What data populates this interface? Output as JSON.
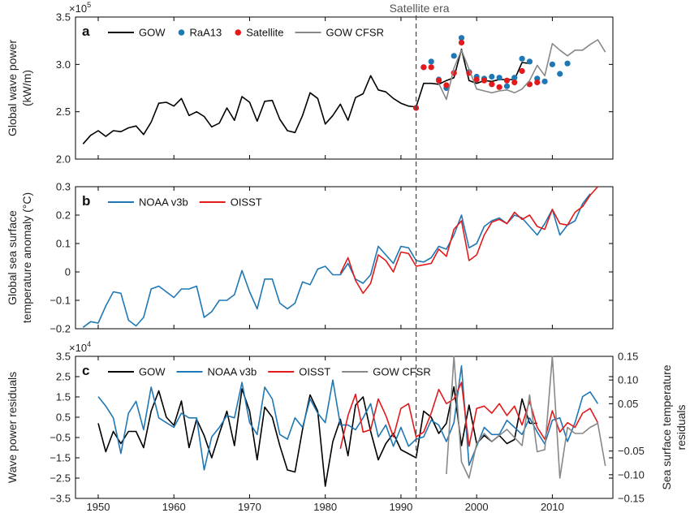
{
  "colors": {
    "gow": "#000000",
    "raa13": "#1f78b4",
    "satellite": "#e31a1c",
    "cfsr": "#888888",
    "noaa": "#1f78b4",
    "oisst": "#e31a1c",
    "frame": "#000000",
    "era_line": "#444444"
  },
  "satellite_era_label": "Satellite era",
  "satellite_era_year": 1992,
  "xaxis": {
    "xlim": [
      1947,
      2018
    ],
    "ticks": [
      "1950",
      "1960",
      "1970",
      "1980",
      "1990",
      "2000",
      "2010"
    ]
  },
  "chart_data": [
    {
      "id": "a",
      "panel_label": "a",
      "type": "line",
      "ylabel": [
        "Global wave power",
        "(kW/m)"
      ],
      "ylim": [
        2.0,
        3.5
      ],
      "yticks": [
        "2.0",
        "2.5",
        "3.0",
        "3.5"
      ],
      "y_exponent": "×10",
      "y_exponent_power": "5",
      "legend": [
        "GOW",
        "RaA13",
        "Satellite",
        "GOW CFSR"
      ],
      "series": [
        {
          "name": "GOW",
          "color": "gow",
          "style": "line",
          "x": [
            1948,
            1949,
            1950,
            1951,
            1952,
            1953,
            1954,
            1955,
            1956,
            1957,
            1958,
            1959,
            1960,
            1961,
            1962,
            1963,
            1964,
            1965,
            1966,
            1967,
            1968,
            1969,
            1970,
            1971,
            1972,
            1973,
            1974,
            1975,
            1976,
            1977,
            1978,
            1979,
            1980,
            1981,
            1982,
            1983,
            1984,
            1985,
            1986,
            1987,
            1988,
            1989,
            1990,
            1991,
            1992,
            1993,
            1994,
            1995,
            1996,
            1997,
            1998,
            1999,
            2000,
            2001,
            2002,
            2003,
            2004,
            2005,
            2006,
            2007
          ],
          "values": [
            2.16,
            2.25,
            2.3,
            2.24,
            2.3,
            2.29,
            2.33,
            2.35,
            2.26,
            2.39,
            2.59,
            2.6,
            2.56,
            2.64,
            2.46,
            2.5,
            2.45,
            2.34,
            2.38,
            2.54,
            2.41,
            2.66,
            2.6,
            2.4,
            2.61,
            2.62,
            2.42,
            2.3,
            2.28,
            2.46,
            2.7,
            2.64,
            2.37,
            2.46,
            2.58,
            2.41,
            2.65,
            2.69,
            2.88,
            2.73,
            2.71,
            2.64,
            2.59,
            2.56,
            2.55,
            2.8,
            2.8,
            2.79,
            2.83,
            2.86,
            3.16,
            2.83,
            2.8,
            2.83,
            2.82,
            2.84,
            2.84,
            2.84,
            3.02,
            3.01
          ]
        },
        {
          "name": "RaA13",
          "color": "raa13",
          "style": "dots",
          "x": [
            1993,
            1994,
            1995,
            1996,
            1997,
            1998,
            1999,
            2000,
            2001,
            2002,
            2003,
            2004,
            2005,
            2006,
            2007,
            2008,
            2009,
            2010,
            2011,
            2012
          ],
          "values": [
            2.97,
            3.03,
            2.84,
            2.75,
            3.09,
            3.28,
            2.92,
            2.87,
            2.85,
            2.87,
            2.86,
            2.77,
            2.86,
            3.06,
            3.03,
            2.85,
            2.82,
            3.0,
            2.9,
            3.01
          ]
        },
        {
          "name": "Satellite",
          "color": "satellite",
          "style": "dots",
          "x": [
            1992,
            1993,
            1994,
            1995,
            1996,
            1997,
            1998,
            1999,
            2000,
            2001,
            2002,
            2003,
            2004,
            2005,
            2006,
            2007,
            2008
          ],
          "values": [
            2.54,
            2.97,
            2.97,
            2.83,
            2.78,
            2.91,
            3.23,
            2.91,
            2.84,
            2.83,
            2.79,
            2.76,
            2.83,
            2.81,
            2.93,
            2.79,
            2.81
          ]
        },
        {
          "name": "GOW CFSR",
          "color": "cfsr",
          "style": "line",
          "x": [
            1995,
            1996,
            1997,
            1998,
            1999,
            2000,
            2001,
            2002,
            2003,
            2004,
            2005,
            2006,
            2007,
            2008,
            2009,
            2010,
            2011,
            2012,
            2013,
            2014,
            2015,
            2016,
            2017
          ],
          "values": [
            2.8,
            2.63,
            2.96,
            3.15,
            2.95,
            2.74,
            2.72,
            2.7,
            2.72,
            2.73,
            2.7,
            2.74,
            2.83,
            2.99,
            2.88,
            3.22,
            3.15,
            3.09,
            3.15,
            3.15,
            3.21,
            3.26,
            3.13
          ]
        }
      ]
    },
    {
      "id": "b",
      "panel_label": "b",
      "type": "line",
      "ylabel": [
        "Global sea surface",
        "temperature anomaly (°C)"
      ],
      "ylim": [
        -0.2,
        0.3
      ],
      "yticks": [
        "−0.2",
        "−0.1",
        "0",
        "0.1",
        "0.2",
        "0.3"
      ],
      "legend": [
        "NOAA v3b",
        "OISST"
      ],
      "series": [
        {
          "name": "NOAA v3b",
          "color": "noaa",
          "style": "line",
          "x": [
            1948,
            1949,
            1950,
            1951,
            1952,
            1953,
            1954,
            1955,
            1956,
            1957,
            1958,
            1959,
            1960,
            1961,
            1962,
            1963,
            1964,
            1965,
            1966,
            1967,
            1968,
            1969,
            1970,
            1971,
            1972,
            1973,
            1974,
            1975,
            1976,
            1977,
            1978,
            1979,
            1980,
            1981,
            1982,
            1983,
            1984,
            1985,
            1986,
            1987,
            1988,
            1989,
            1990,
            1991,
            1992,
            1993,
            1994,
            1995,
            1996,
            1997,
            1998,
            1999,
            2000,
            2001,
            2002,
            2003,
            2004,
            2005,
            2006,
            2007,
            2008,
            2009,
            2010,
            2011,
            2012,
            2013,
            2014,
            2015
          ],
          "values": [
            -0.195,
            -0.175,
            -0.18,
            -0.12,
            -0.07,
            -0.075,
            -0.17,
            -0.19,
            -0.16,
            -0.06,
            -0.05,
            -0.07,
            -0.09,
            -0.06,
            -0.06,
            -0.05,
            -0.16,
            -0.14,
            -0.1,
            -0.1,
            -0.08,
            0.005,
            -0.07,
            -0.13,
            -0.025,
            -0.025,
            -0.11,
            -0.13,
            -0.11,
            -0.035,
            -0.045,
            0.01,
            0.02,
            -0.01,
            -0.01,
            0.03,
            -0.025,
            -0.04,
            -0.01,
            0.09,
            0.06,
            0.03,
            0.09,
            0.085,
            0.04,
            0.035,
            0.05,
            0.09,
            0.08,
            0.13,
            0.2,
            0.085,
            0.1,
            0.16,
            0.18,
            0.19,
            0.17,
            0.2,
            0.19,
            0.16,
            0.13,
            0.17,
            0.22,
            0.13,
            0.165,
            0.18,
            0.24,
            0.275
          ]
        },
        {
          "name": "OISST",
          "color": "oisst",
          "style": "line",
          "x": [
            1982,
            1983,
            1984,
            1985,
            1986,
            1987,
            1988,
            1989,
            1990,
            1991,
            1992,
            1993,
            1994,
            1995,
            1996,
            1997,
            1998,
            1999,
            2000,
            2001,
            2002,
            2003,
            2004,
            2005,
            2006,
            2007,
            2008,
            2009,
            2010,
            2011,
            2012,
            2013,
            2014,
            2015,
            2016
          ],
          "values": [
            -0.005,
            0.05,
            -0.03,
            -0.075,
            -0.04,
            0.06,
            0.04,
            0.0,
            0.07,
            0.065,
            0.02,
            0.025,
            0.03,
            0.08,
            0.055,
            0.15,
            0.18,
            0.04,
            0.06,
            0.13,
            0.175,
            0.185,
            0.17,
            0.21,
            0.185,
            0.2,
            0.16,
            0.15,
            0.22,
            0.17,
            0.165,
            0.21,
            0.23,
            0.27,
            0.3
          ]
        }
      ]
    },
    {
      "id": "c",
      "panel_label": "c",
      "type": "line",
      "ylabel": [
        "Wave power residuals"
      ],
      "ylabel_right": [
        "Sea surface temperature",
        "residuals"
      ],
      "ylim": [
        -3.5,
        3.5
      ],
      "ylim_right": [
        -0.15,
        0.15
      ],
      "yticks": [
        "−3.5",
        "−2.5",
        "−1.5",
        "−0.5",
        "0.5",
        "1.5",
        "2.5",
        "3.5"
      ],
      "yticks_right": [
        "−0.15",
        "−0.10",
        "−0.05",
        "0.05",
        "0.10",
        "0.15"
      ],
      "y_exponent": "×10",
      "y_exponent_power": "4",
      "legend": [
        "GOW",
        "NOAA v3b",
        "OISST",
        "GOW CFSR"
      ],
      "series": [
        {
          "name": "GOW",
          "color": "gow",
          "style": "line",
          "axis": "left",
          "x": [
            1950,
            1951,
            1952,
            1953,
            1954,
            1955,
            1956,
            1957,
            1958,
            1959,
            1960,
            1961,
            1962,
            1963,
            1964,
            1965,
            1966,
            1967,
            1968,
            1969,
            1970,
            1971,
            1972,
            1973,
            1974,
            1975,
            1976,
            1977,
            1978,
            1979,
            1980,
            1981,
            1982,
            1983,
            1984,
            1985,
            1986,
            1987,
            1988,
            1989,
            1990,
            1991,
            1992,
            1993,
            1994,
            1995,
            1996,
            1997,
            1998,
            1999,
            2000,
            2001,
            2002,
            2003,
            2004,
            2005,
            2006,
            2007,
            2008
          ],
          "values": [
            0.2,
            -1.2,
            -0.2,
            -0.8,
            -0.2,
            -0.2,
            -1.0,
            0.8,
            1.8,
            0.5,
            0.1,
            1.3,
            -1.0,
            0.4,
            -0.4,
            -1.5,
            -0.3,
            0.8,
            -0.9,
            1.9,
            0.8,
            -1.6,
            1.0,
            0.5,
            -0.9,
            -2.1,
            -2.2,
            -0.1,
            1.6,
            0.8,
            -2.9,
            -0.7,
            0.4,
            -1.4,
            1.1,
            1.5,
            -0.2,
            -1.6,
            -0.8,
            -0.3,
            -1.1,
            -1.3,
            -1.5,
            0.8,
            0.5,
            -0.3,
            0.2,
            2.0,
            -0.9,
            1.1,
            -0.8,
            -0.4,
            -0.7,
            -0.4,
            -0.8,
            -0.6,
            1.4,
            0.2,
            0.2
          ]
        },
        {
          "name": "NOAA v3b",
          "color": "noaa",
          "style": "line",
          "axis": "right",
          "x": [
            1950,
            1951,
            1952,
            1953,
            1954,
            1955,
            1956,
            1957,
            1958,
            1959,
            1960,
            1961,
            1962,
            1963,
            1964,
            1965,
            1966,
            1967,
            1968,
            1969,
            1970,
            1971,
            1972,
            1973,
            1974,
            1975,
            1976,
            1977,
            1978,
            1979,
            1980,
            1981,
            1982,
            1983,
            1984,
            1985,
            1986,
            1987,
            1988,
            1989,
            1990,
            1991,
            1992,
            1993,
            1994,
            1995,
            1996,
            1997,
            1998,
            1999,
            2000,
            2001,
            2002,
            2003,
            2004,
            2005,
            2006,
            2007,
            2008,
            2009,
            2010,
            2011,
            2012,
            2013,
            2014,
            2015,
            2016
          ],
          "values": [
            0.065,
            0.045,
            0.02,
            -0.055,
            0.03,
            0.055,
            -0.005,
            0.085,
            0.02,
            0.01,
            0.0,
            0.03,
            0.02,
            0.02,
            -0.09,
            -0.02,
            0.0,
            0.025,
            0.02,
            0.095,
            0.01,
            -0.015,
            0.085,
            0.06,
            -0.015,
            -0.025,
            0.02,
            0.0,
            0.06,
            0.03,
            0.01,
            0.1,
            0.005,
            0.005,
            -0.005,
            0.02,
            0.05,
            -0.02,
            0.005,
            -0.04,
            0.0,
            -0.04,
            -0.025,
            -0.02,
            0.015,
            0.005,
            -0.03,
            0.01,
            0.13,
            -0.08,
            -0.04,
            0.0,
            -0.015,
            -0.015,
            0.015,
            0.0,
            -0.015,
            0.02,
            -0.01,
            -0.035,
            0.015,
            0.02,
            -0.03,
            0.01,
            0.065,
            0.075,
            0.05
          ]
        },
        {
          "name": "OISST",
          "color": "oisst",
          "style": "line",
          "axis": "right",
          "x": [
            1982,
            1983,
            1984,
            1985,
            1986,
            1987,
            1988,
            1989,
            1990,
            1991,
            1992,
            1993,
            1994,
            1995,
            1996,
            1997,
            1998,
            1999,
            2000,
            2001,
            2002,
            2003,
            2004,
            2005,
            2006,
            2007,
            2008,
            2009,
            2010,
            2011,
            2012,
            2013,
            2014,
            2015,
            2016
          ],
          "values": [
            -0.045,
            0.025,
            0.07,
            -0.01,
            -0.005,
            0.06,
            0.025,
            -0.02,
            0.04,
            0.05,
            -0.02,
            -0.01,
            0.03,
            0.08,
            0.05,
            0.06,
            0.095,
            -0.04,
            0.04,
            0.045,
            0.03,
            0.05,
            0.025,
            0.045,
            0.005,
            0.055,
            0.0,
            -0.025,
            0.035,
            -0.01,
            0.01,
            0.0,
            0.03,
            0.04,
            0.01
          ]
        },
        {
          "name": "GOW CFSR",
          "color": "cfsr",
          "style": "line",
          "axis": "left",
          "x": [
            1996,
            1997,
            1998,
            1999,
            2000,
            2001,
            2002,
            2003,
            2004,
            2005,
            2006,
            2007,
            2008,
            2009,
            2010,
            2011,
            2012,
            2013,
            2014,
            2015,
            2016,
            2017
          ],
          "values": [
            -2.3,
            3.5,
            -1.7,
            -2.5,
            -0.8,
            -0.3,
            -0.7,
            -0.4,
            -0.1,
            -0.5,
            -0.9,
            1.6,
            -1.2,
            -1.1,
            3.5,
            -2.5,
            0.0,
            -0.3,
            -0.3,
            0.0,
            0.2,
            -1.9
          ]
        }
      ]
    }
  ]
}
